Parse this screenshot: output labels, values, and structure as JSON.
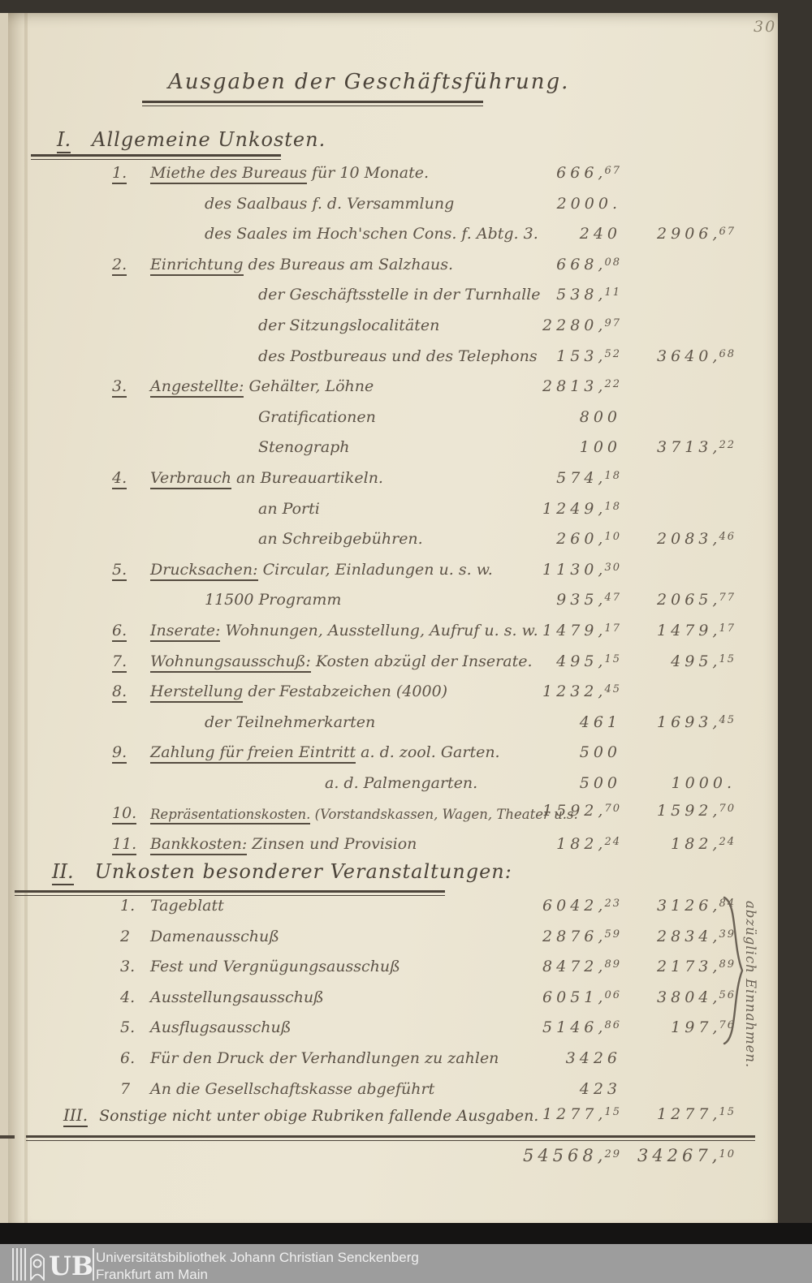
{
  "scan": {
    "page_number": "30"
  },
  "colors": {
    "paper": "#ebe5d2",
    "ink": "#5d5347",
    "ink_dark": "#4c443a",
    "pencil": "#8d8470",
    "footer_bar": "#9d9d9d",
    "scan_border": "#38342e"
  },
  "document": {
    "title": "Ausgaben der Geschäftsführung.",
    "margin_note": "abzüglich Einnahmen.",
    "sections": [
      {
        "numeral": "I.",
        "heading": "Allgemeine Unkosten.",
        "rows": [
          {
            "num": "1.",
            "keyword": "Miethe des Bureaus",
            "rest": " für 10 Monate.",
            "amount1": "666,67",
            "amount2": "",
            "indent": 0
          },
          {
            "num": "",
            "keyword": "",
            "rest": "des Saalbaus f. d. Versammlung",
            "amount1": "2000.",
            "amount2": "",
            "indent": 1
          },
          {
            "num": "",
            "keyword": "",
            "rest": "des Saales im Hoch'schen Cons. f. Abtg. 3.",
            "amount1": "240",
            "amount2": "2906,67",
            "indent": 1
          },
          {
            "num": "2.",
            "keyword": "Einrichtung",
            "rest": " des Bureaus am Salzhaus.",
            "amount1": "668,08",
            "amount2": "",
            "indent": 0
          },
          {
            "num": "",
            "keyword": "",
            "rest": "der Geschäftsstelle in der Turnhalle",
            "amount1": "538,11",
            "amount2": "",
            "indent": 2
          },
          {
            "num": "",
            "keyword": "",
            "rest": "der Sitzungslocalitäten",
            "amount1": "2280,97",
            "amount2": "",
            "indent": 2
          },
          {
            "num": "",
            "keyword": "",
            "rest": "des Postbureaus und des Telephons",
            "amount1": "153,52",
            "amount2": "3640,68",
            "indent": 2
          },
          {
            "num": "3.",
            "keyword": "Angestellte:",
            "rest": " Gehälter, Löhne",
            "amount1": "2813,22",
            "amount2": "",
            "indent": 0
          },
          {
            "num": "",
            "keyword": "",
            "rest": "Gratificationen",
            "amount1": "800",
            "amount2": "",
            "indent": 2
          },
          {
            "num": "",
            "keyword": "",
            "rest": "Stenograph",
            "amount1": "100",
            "amount2": "3713,22",
            "indent": 2
          },
          {
            "num": "4.",
            "keyword": "Verbrauch",
            "rest": " an Bureauartikeln.",
            "amount1": "574,18",
            "amount2": "",
            "indent": 0
          },
          {
            "num": "",
            "keyword": "",
            "rest": "an Porti",
            "amount1": "1249,18",
            "amount2": "",
            "indent": 2
          },
          {
            "num": "",
            "keyword": "",
            "rest": "an Schreibgebühren.",
            "amount1": "260,10",
            "amount2": "2083,46",
            "indent": 2
          },
          {
            "num": "5.",
            "keyword": "Drucksachen:",
            "rest": " Circular, Einladungen u. s. w.",
            "amount1": "1130,30",
            "amount2": "",
            "indent": 0
          },
          {
            "num": "",
            "keyword": "",
            "rest": "11500 Programm",
            "amount1": "935,47",
            "amount2": "2065,77",
            "indent": 1
          },
          {
            "num": "6.",
            "keyword": "Inserate:",
            "rest": " Wohnungen, Ausstellung, Aufruf u. s. w.",
            "amount1": "1479,17",
            "amount2": "1479,17",
            "indent": 0
          },
          {
            "num": "7.",
            "keyword": "Wohnungsausschuß:",
            "rest": " Kosten abzügl der Inserate.",
            "amount1": "495,15",
            "amount2": "495,15",
            "indent": 0
          },
          {
            "num": "8.",
            "keyword": "Herstellung",
            "rest": " der Festabzeichen (4000)",
            "amount1": "1232,45",
            "amount2": "",
            "indent": 0
          },
          {
            "num": "",
            "keyword": "",
            "rest": "der Teilnehmerkarten",
            "amount1": "461",
            "amount2": "1693,45",
            "indent": 1
          },
          {
            "num": "9.",
            "keyword": "Zahlung für freien Eintritt",
            "rest": " a. d. zool. Garten.",
            "amount1": "500",
            "amount2": "",
            "indent": 0
          },
          {
            "num": "",
            "keyword": "",
            "rest": "a. d. Palmengarten.",
            "amount1": "500",
            "amount2": "1000.",
            "indent": 3
          },
          {
            "num": "10.",
            "keyword": "Repräsentationskosten.",
            "rest": " (Vorstandskassen, Wagen, Theater u.s.",
            "amount1": "1592,70",
            "amount2": "1592,70",
            "indent": 0
          },
          {
            "num": "11.",
            "keyword": "Bankkosten:",
            "rest": " Zinsen und Provision",
            "amount1": "182,24",
            "amount2": "182,24",
            "indent": 0
          }
        ]
      },
      {
        "numeral": "II.",
        "heading": "Unkosten besonderer Veranstaltungen:",
        "rows": [
          {
            "num": "1.",
            "keyword": "",
            "rest": "Tageblatt",
            "amount1": "6042,23",
            "amount2": "3126,84",
            "indent": 0
          },
          {
            "num": "2",
            "keyword": "",
            "rest": "Damenausschuß",
            "amount1": "2876,59",
            "amount2": "2834,39",
            "indent": 0
          },
          {
            "num": "3.",
            "keyword": "",
            "rest": "Fest und Vergnügungsausschuß",
            "amount1": "8472,89",
            "amount2": "2173,89",
            "indent": 0
          },
          {
            "num": "4.",
            "keyword": "",
            "rest": "Ausstellungsausschuß",
            "amount1": "6051,06",
            "amount2": "3804,56",
            "indent": 0
          },
          {
            "num": "5.",
            "keyword": "",
            "rest": "Ausflugsausschuß",
            "amount1": "5146,86",
            "amount2": "197,76",
            "indent": 0
          },
          {
            "num": "6.",
            "keyword": "",
            "rest": "Für den Druck der Verhandlungen zu zahlen",
            "amount1": "3426",
            "amount2": "",
            "indent": 0
          },
          {
            "num": "7",
            "keyword": "",
            "rest": "An die Gesellschaftskasse abgeführt",
            "amount1": "423",
            "amount2": "",
            "indent": 0
          }
        ]
      },
      {
        "numeral": "III.",
        "heading": "Sonstige nicht unter obige Rubriken fallende Ausgaben.",
        "amount1": "1277,15",
        "amount2": "1277,15",
        "rows": []
      }
    ],
    "totals": {
      "amount1": "54568,29",
      "amount2": "34267,10"
    }
  },
  "footer": {
    "logo": "UB",
    "line1": "Universitätsbibliothek Johann Christian Senckenberg",
    "line2": "Frankfurt am Main"
  }
}
